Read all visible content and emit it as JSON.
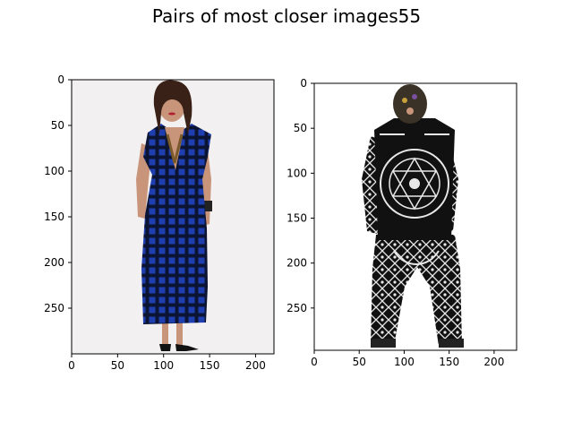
{
  "figure": {
    "title": "Pairs of most closer images55"
  },
  "chart_data": [
    {
      "type": "image",
      "subplot": "left",
      "title": "",
      "xlabel": "",
      "ylabel": "",
      "xlim": [
        0,
        220
      ],
      "ylim": [
        300,
        0
      ],
      "xticks": [
        0,
        50,
        100,
        150,
        200
      ],
      "yticks": [
        0,
        50,
        100,
        150,
        200,
        250
      ],
      "content": "photo",
      "colors": {
        "background": "#f2f0f1",
        "dress": "#1f3fb0",
        "dress_dark": "#0c1433",
        "skin": "#c9957a",
        "hair": "#3a2118"
      }
    },
    {
      "type": "image",
      "subplot": "right",
      "title": "",
      "xlabel": "",
      "ylabel": "",
      "xlim": [
        0,
        225
      ],
      "ylim": [
        297,
        0
      ],
      "xticks": [
        0,
        50,
        100,
        150,
        200
      ],
      "yticks": [
        0,
        50,
        100,
        150,
        200,
        250
      ],
      "content": "photo",
      "colors": {
        "background": "#ffffff",
        "outfit": "#111111",
        "pattern": "#e8e8e8",
        "mask": "#3a3226"
      }
    }
  ]
}
